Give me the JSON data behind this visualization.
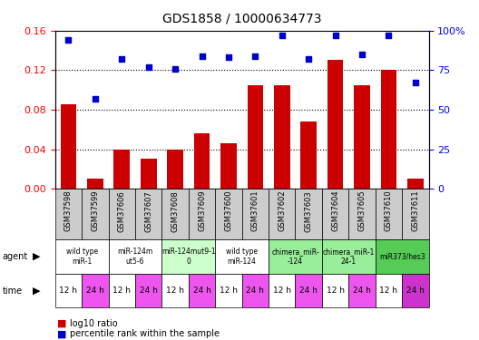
{
  "title": "GDS1858 / 10000634773",
  "samples": [
    "GSM37598",
    "GSM37599",
    "GSM37606",
    "GSM37607",
    "GSM37608",
    "GSM37609",
    "GSM37600",
    "GSM37601",
    "GSM37602",
    "GSM37603",
    "GSM37604",
    "GSM37605",
    "GSM37610",
    "GSM37611"
  ],
  "bar_values": [
    0.085,
    0.01,
    0.04,
    0.03,
    0.04,
    0.056,
    0.046,
    0.105,
    0.105,
    0.068,
    0.13,
    0.105,
    0.12,
    0.01
  ],
  "dot_values": [
    94,
    57,
    82,
    77,
    76,
    84,
    83,
    84,
    97,
    82,
    97,
    85,
    97,
    67
  ],
  "ylim_left": [
    0,
    0.16
  ],
  "ylim_right": [
    0,
    100
  ],
  "yticks_left": [
    0,
    0.04,
    0.08,
    0.12,
    0.16
  ],
  "yticks_right": [
    0,
    25,
    50,
    75,
    100
  ],
  "bar_color": "#cc0000",
  "dot_color": "#0000cc",
  "agent_groups": [
    {
      "label": "wild type\nmiR-1",
      "cols": [
        0,
        1
      ],
      "color": "#ffffff"
    },
    {
      "label": "miR-124m\nut5-6",
      "cols": [
        2,
        3
      ],
      "color": "#ffffff"
    },
    {
      "label": "miR-124mut9-1\n0",
      "cols": [
        4,
        5
      ],
      "color": "#ccffcc"
    },
    {
      "label": "wild type\nmiR-124",
      "cols": [
        6,
        7
      ],
      "color": "#ffffff"
    },
    {
      "label": "chimera_miR-\n-124",
      "cols": [
        8,
        9
      ],
      "color": "#99ee99"
    },
    {
      "label": "chimera_miR-1\n24-1",
      "cols": [
        10,
        11
      ],
      "color": "#99ee99"
    },
    {
      "label": "miR373/hes3",
      "cols": [
        12,
        13
      ],
      "color": "#55cc55"
    }
  ],
  "time_labels": [
    "12 h",
    "24 h",
    "12 h",
    "24 h",
    "12 h",
    "24 h",
    "12 h",
    "24 h",
    "12 h",
    "24 h",
    "12 h",
    "24 h",
    "12 h",
    "24 h"
  ],
  "xticklabel_bg": "#cccccc",
  "legend_items": [
    {
      "label": "log10 ratio",
      "color": "#cc0000"
    },
    {
      "label": "percentile rank within the sample",
      "color": "#0000cc"
    }
  ]
}
